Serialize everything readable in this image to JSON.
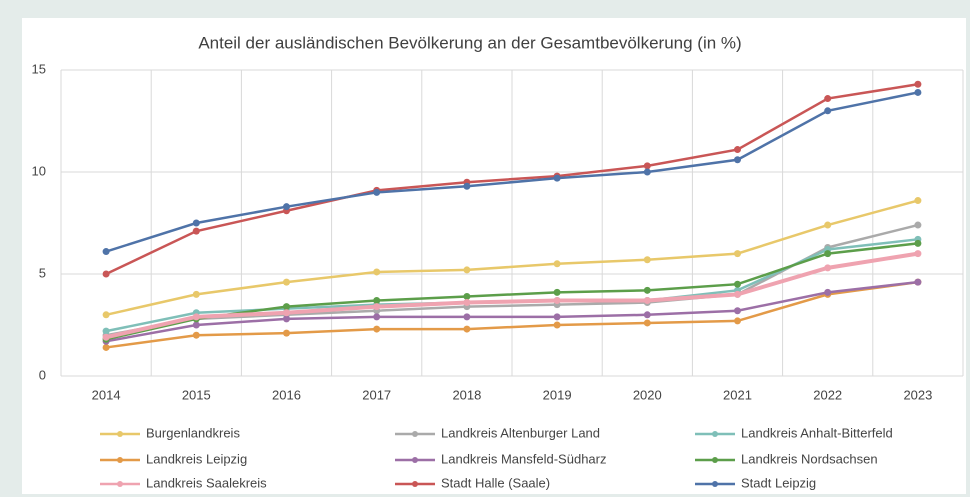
{
  "chart_data": {
    "type": "line",
    "title": "Anteil der ausländischen Bevölkerung an der Gesamtbevölkerung (in %)",
    "categories": [
      "2014",
      "2015",
      "2016",
      "2017",
      "2018",
      "2019",
      "2020",
      "2021",
      "2022",
      "2023"
    ],
    "ylim": [
      0,
      15
    ],
    "yticks": [
      0,
      5,
      10,
      15
    ],
    "grid": true,
    "series": [
      {
        "name": "Burgenlandkreis",
        "color": "#e8c86a",
        "values": [
          3.0,
          4.0,
          4.6,
          5.1,
          5.2,
          5.5,
          5.7,
          6.0,
          7.4,
          8.6
        ]
      },
      {
        "name": "Landkreis Altenburger Land",
        "color": "#aaaaaa",
        "values": [
          2.0,
          2.8,
          3.0,
          3.2,
          3.4,
          3.5,
          3.6,
          4.0,
          6.3,
          7.4
        ]
      },
      {
        "name": "Landkreis Anhalt-Bitterfeld",
        "color": "#7fbfb8",
        "values": [
          2.2,
          3.1,
          3.3,
          3.5,
          3.6,
          3.7,
          3.7,
          4.2,
          6.2,
          6.7
        ]
      },
      {
        "name": "Landkreis Leipzig",
        "color": "#e39a48",
        "values": [
          1.4,
          2.0,
          2.1,
          2.3,
          2.3,
          2.5,
          2.6,
          2.7,
          4.0,
          4.6
        ]
      },
      {
        "name": "Landkreis Mansfeld-Südharz",
        "color": "#9c6fa6",
        "values": [
          1.7,
          2.5,
          2.8,
          2.9,
          2.9,
          2.9,
          3.0,
          3.2,
          4.1,
          4.6
        ]
      },
      {
        "name": "Landkreis Nordsachsen",
        "color": "#5c9e4a",
        "values": [
          1.8,
          2.8,
          3.4,
          3.7,
          3.9,
          4.1,
          4.2,
          4.5,
          6.0,
          6.5
        ]
      },
      {
        "name": "Landkreis Saalekreis",
        "color": "#efa3b0",
        "values": [
          1.9,
          2.9,
          3.1,
          3.4,
          3.6,
          3.7,
          3.7,
          4.0,
          5.3,
          6.0
        ]
      },
      {
        "name": "Stadt Halle (Saale)",
        "color": "#c95656",
        "values": [
          5.0,
          7.1,
          8.1,
          9.1,
          9.5,
          9.8,
          10.3,
          11.1,
          13.6,
          14.3
        ]
      },
      {
        "name": "Stadt Leipzig",
        "color": "#4f73a8",
        "values": [
          6.1,
          7.5,
          8.3,
          9.0,
          9.3,
          9.7,
          10.0,
          10.6,
          13.0,
          13.9
        ]
      }
    ]
  }
}
